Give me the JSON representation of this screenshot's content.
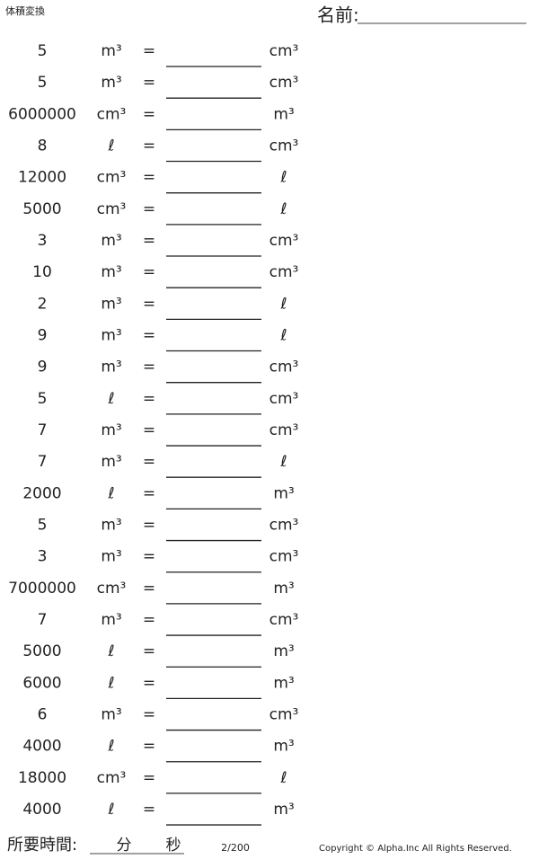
{
  "header": {
    "title": "体積変換",
    "name_label": "名前:"
  },
  "equals": "=",
  "rows": [
    {
      "value": 5,
      "from": "m³",
      "to": "cm³"
    },
    {
      "value": 5,
      "from": "m³",
      "to": "cm³"
    },
    {
      "value": 6000000,
      "from": "cm³",
      "to": "m³"
    },
    {
      "value": 8,
      "from": "ℓ",
      "to": "cm³"
    },
    {
      "value": 12000,
      "from": "cm³",
      "to": "ℓ"
    },
    {
      "value": 5000,
      "from": "cm³",
      "to": "ℓ"
    },
    {
      "value": 3,
      "from": "m³",
      "to": "cm³"
    },
    {
      "value": 10,
      "from": "m³",
      "to": "cm³"
    },
    {
      "value": 2,
      "from": "m³",
      "to": "ℓ"
    },
    {
      "value": 9,
      "from": "m³",
      "to": "ℓ"
    },
    {
      "value": 9,
      "from": "m³",
      "to": "cm³"
    },
    {
      "value": 5,
      "from": "ℓ",
      "to": "cm³"
    },
    {
      "value": 7,
      "from": "m³",
      "to": "cm³"
    },
    {
      "value": 7,
      "from": "m³",
      "to": "ℓ"
    },
    {
      "value": 2000,
      "from": "ℓ",
      "to": "m³"
    },
    {
      "value": 5,
      "from": "m³",
      "to": "cm³"
    },
    {
      "value": 3,
      "from": "m³",
      "to": "cm³"
    },
    {
      "value": 7000000,
      "from": "cm³",
      "to": "m³"
    },
    {
      "value": 7,
      "from": "m³",
      "to": "cm³"
    },
    {
      "value": 5000,
      "from": "ℓ",
      "to": "m³"
    },
    {
      "value": 6000,
      "from": "ℓ",
      "to": "m³"
    },
    {
      "value": 6,
      "from": "m³",
      "to": "cm³"
    },
    {
      "value": 4000,
      "from": "ℓ",
      "to": "m³"
    },
    {
      "value": 18000,
      "from": "cm³",
      "to": "ℓ"
    },
    {
      "value": 4000,
      "from": "ℓ",
      "to": "m³"
    }
  ],
  "footer": {
    "time_label": "所要時間:",
    "minutes": "分",
    "seconds": "秒",
    "page": "2/200",
    "copyright": "Copyright © Alpha.Inc All Rights Reserved."
  }
}
